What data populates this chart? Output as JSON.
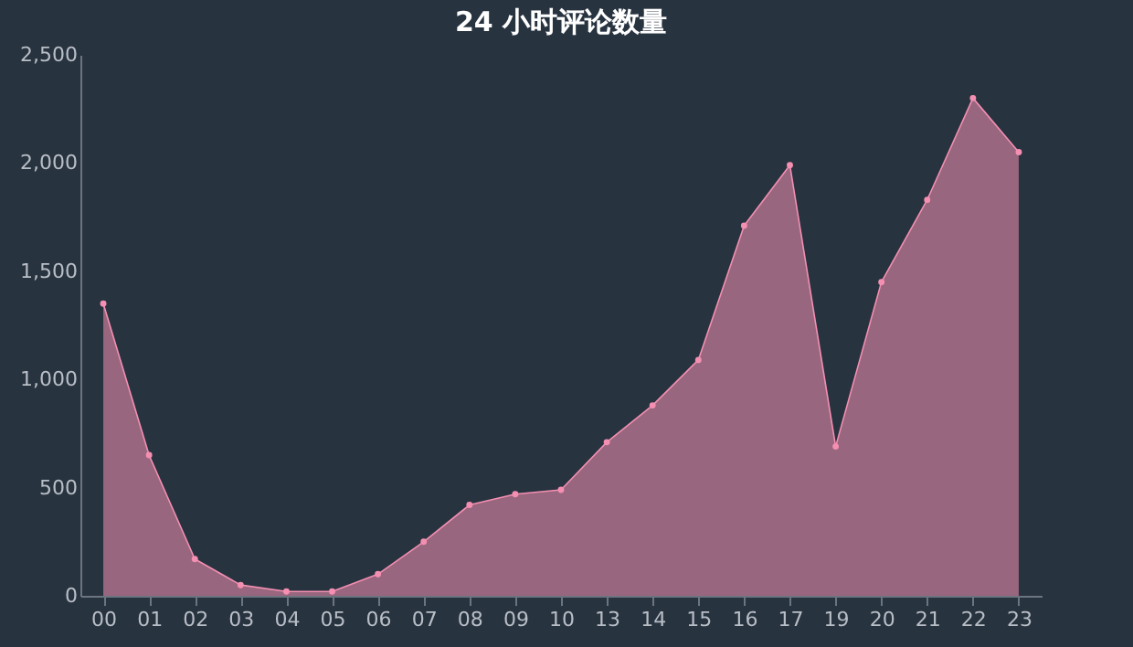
{
  "chart_data": {
    "type": "area",
    "title": "24 小时评论数量",
    "categories": [
      "00",
      "01",
      "02",
      "03",
      "04",
      "05",
      "06",
      "07",
      "08",
      "09",
      "10",
      "13",
      "14",
      "15",
      "16",
      "17",
      "19",
      "20",
      "21",
      "22",
      "23"
    ],
    "series": [
      {
        "color": "#f48fb1",
        "values": [
          1350,
          650,
          170,
          50,
          20,
          20,
          100,
          250,
          420,
          470,
          490,
          710,
          880,
          1090,
          1710,
          1990,
          690,
          1450,
          1830,
          2300,
          2050
        ]
      }
    ],
    "ylim": [
      0,
      2500
    ],
    "yticks": [
      {
        "value": 0,
        "label": "0"
      },
      {
        "value": 500,
        "label": "500"
      },
      {
        "value": 1000,
        "label": "1,000"
      },
      {
        "value": 1500,
        "label": "1,500"
      },
      {
        "value": 2000,
        "label": "2,000"
      },
      {
        "value": 2500,
        "label": "2,500"
      }
    ],
    "grid": false,
    "marker": "circle",
    "line_style": "solid"
  }
}
